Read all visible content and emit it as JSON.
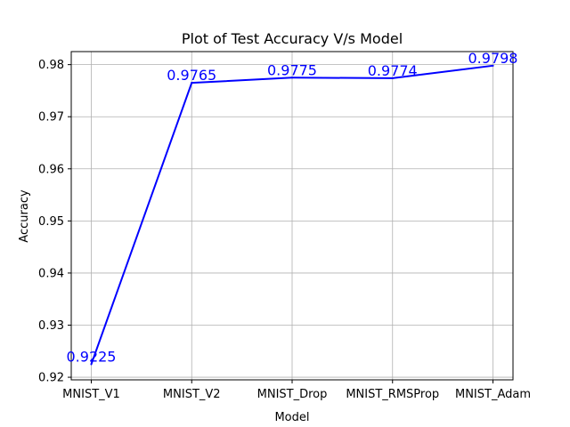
{
  "chart_data": {
    "type": "line",
    "title": "Plot of Test Accuracy V/s Model",
    "xlabel": "Model",
    "ylabel": "Accuracy",
    "categories": [
      "MNIST_V1",
      "MNIST_V2",
      "MNIST_Drop",
      "MNIST_RMSProp",
      "MNIST_Adam"
    ],
    "series": [
      {
        "values": [
          0.9225,
          0.9765,
          0.9775,
          0.9774,
          0.9798
        ],
        "color": "#0000ff"
      }
    ],
    "data_labels": [
      "0.9225",
      "0.9765",
      "0.9775",
      "0.9774",
      "0.9798"
    ],
    "ylim": [
      0.9195,
      0.9825
    ],
    "yticks": [
      0.92,
      0.93,
      0.94,
      0.95,
      0.96,
      0.97,
      0.98
    ],
    "ytick_labels": [
      "0.92",
      "0.93",
      "0.94",
      "0.95",
      "0.96",
      "0.97",
      "0.98"
    ],
    "grid": true,
    "label_color": "#0000ff"
  }
}
